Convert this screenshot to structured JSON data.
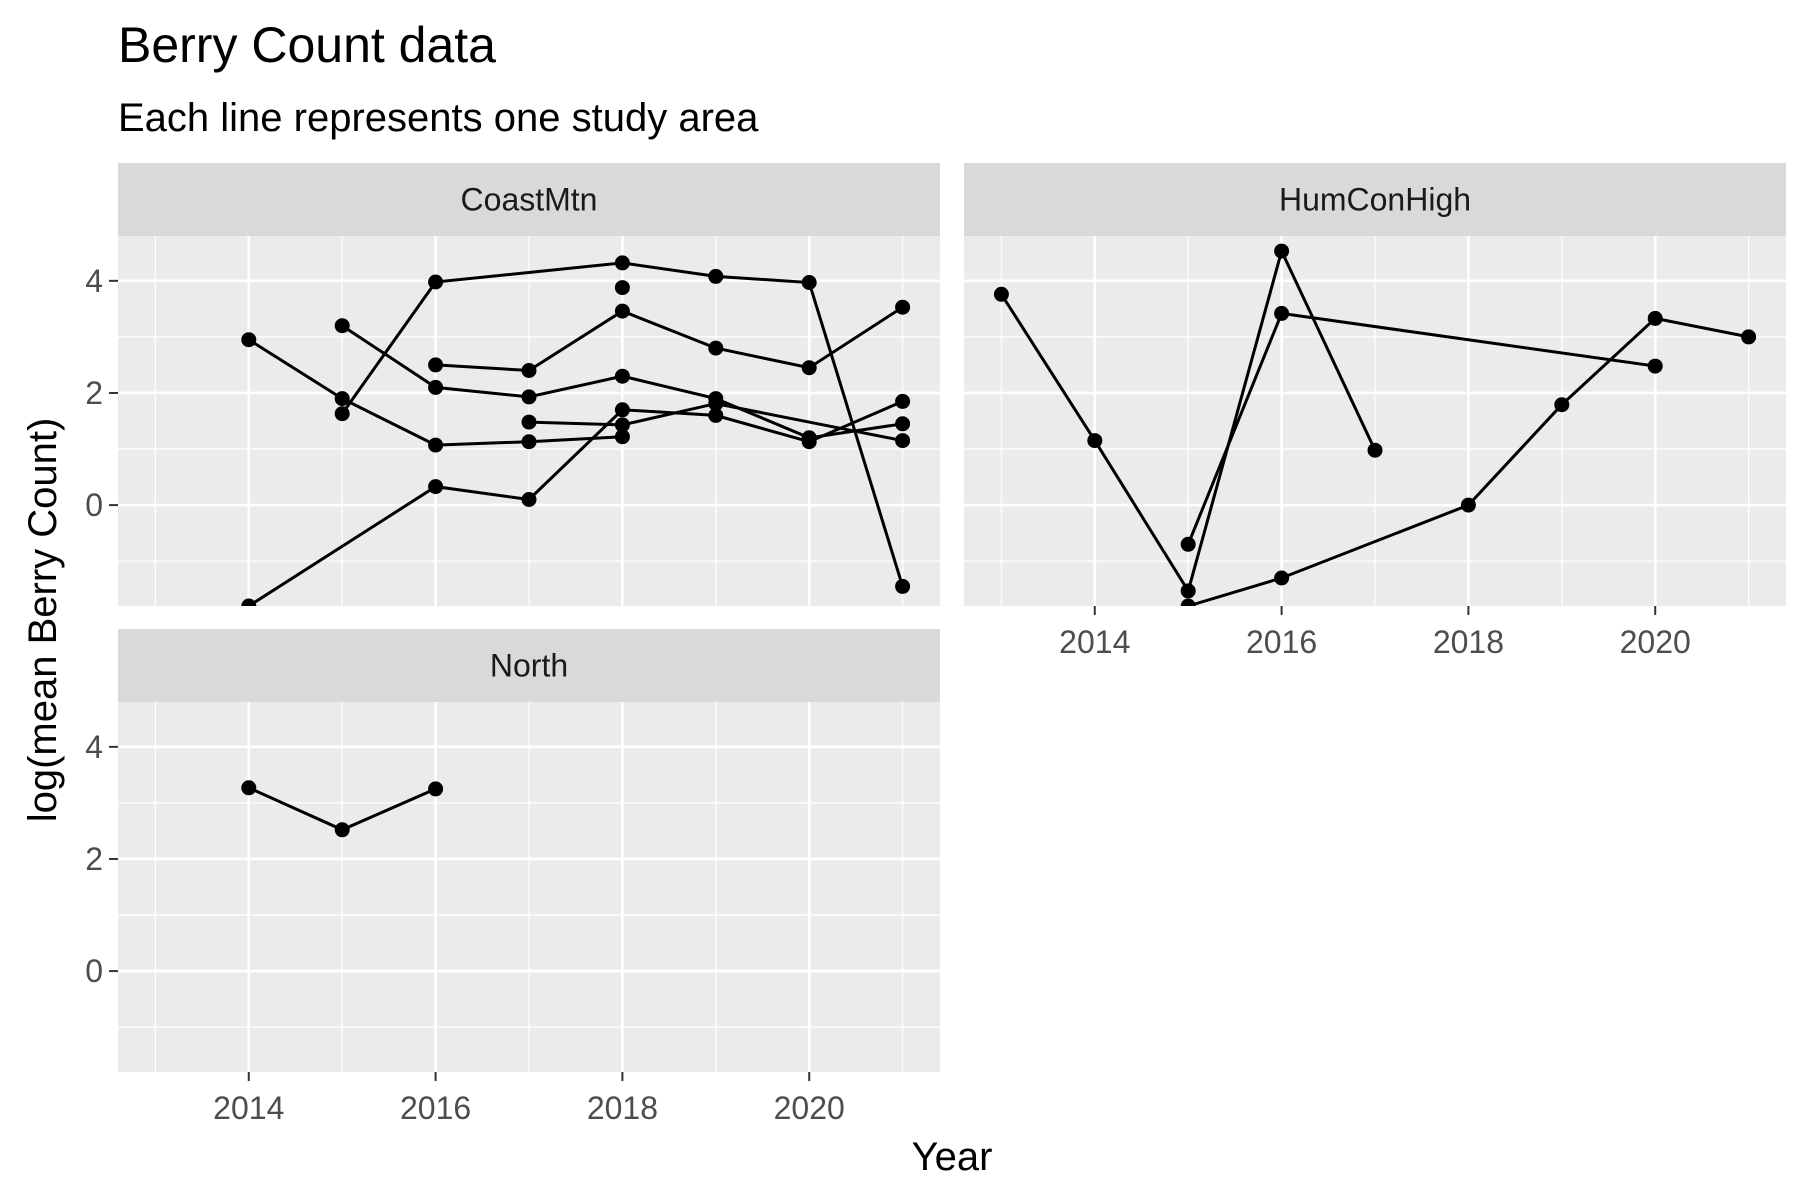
{
  "title": "Berry Count data",
  "subtitle": "Each line represents one study area",
  "chart_data": {
    "type": "line",
    "title": "Berry Count data",
    "subtitle": "Each line represents one study area",
    "xlabel": "Year",
    "ylabel": "log(mean Berry Count)",
    "xlim": [
      2012.6,
      2021.4
    ],
    "ylim": [
      -1.8,
      4.8
    ],
    "x_ticks": [
      2014,
      2016,
      2018,
      2020
    ],
    "y_ticks": [
      0,
      2,
      4
    ],
    "x_tick_labels": [
      "2014",
      "2016",
      "2018",
      "2020"
    ],
    "y_tick_labels": [
      "0",
      "2",
      "4"
    ],
    "grid": true,
    "legend": "none",
    "point_color": "#000000",
    "line_color": "#000000",
    "panel_background": "#ebebeb",
    "strip_background": "#d9d9d9",
    "panels": [
      {
        "name": "CoastMtn",
        "series": [
          {
            "x": [
              2014,
              2015,
              2016,
              2017,
              2018
            ],
            "y": [
              2.95,
              1.9,
              1.07,
              1.13,
              1.22
            ]
          },
          {
            "x": [
              2015,
              2016,
              2017,
              2018,
              2019,
              2020,
              2021
            ],
            "y": [
              3.2,
              2.1,
              1.93,
              2.3,
              1.9,
              1.2,
              1.45
            ]
          },
          {
            "x": [
              2015,
              2016,
              2018,
              2019,
              2020,
              2021
            ],
            "y": [
              1.63,
              3.98,
              4.32,
              4.08,
              3.97,
              -1.45
            ]
          },
          {
            "x": [
              2014,
              2016,
              2017,
              2018,
              2019,
              2020,
              2021
            ],
            "y": [
              -1.8,
              0.33,
              0.1,
              1.7,
              1.6,
              1.13,
              1.85
            ]
          },
          {
            "x": [
              2016,
              2017,
              2018,
              2019,
              2020,
              2021
            ],
            "y": [
              2.5,
              2.4,
              3.46,
              2.8,
              2.45,
              3.53
            ]
          },
          {
            "x": [
              2017,
              2018,
              2019,
              2021
            ],
            "y": [
              1.48,
              1.43,
              1.81,
              1.15
            ]
          },
          {
            "x": [
              2018
            ],
            "y": [
              3.88
            ]
          }
        ]
      },
      {
        "name": "HumConHigh",
        "series": [
          {
            "x": [
              2013,
              2014,
              2015,
              2016,
              2017
            ],
            "y": [
              3.76,
              1.15,
              -1.53,
              4.53,
              0.98
            ]
          },
          {
            "x": [
              2015,
              2016,
              2020
            ],
            "y": [
              -0.7,
              3.42,
              2.48
            ]
          },
          {
            "x": [
              2015,
              2016,
              2018,
              2019,
              2020,
              2021
            ],
            "y": [
              -1.8,
              -1.3,
              0.0,
              1.79,
              3.33,
              3.0
            ]
          }
        ]
      },
      {
        "name": "North",
        "series": [
          {
            "x": [
              2014,
              2015,
              2016
            ],
            "y": [
              3.27,
              2.52,
              3.25
            ]
          }
        ]
      }
    ]
  }
}
